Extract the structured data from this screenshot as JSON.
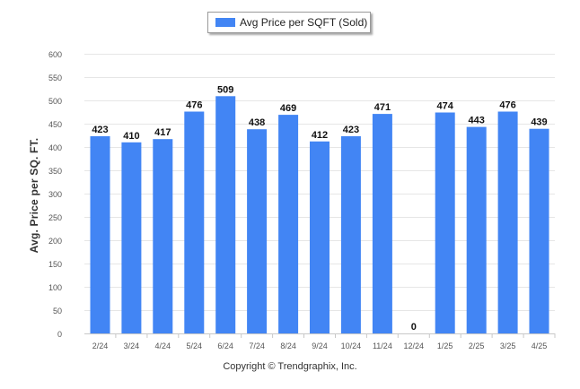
{
  "legend": {
    "label": "Avg Price per SQFT (Sold)",
    "color": "#4285f4"
  },
  "footer": {
    "copyright": "Copyright © Trendgraphix, Inc."
  },
  "chart_data": {
    "type": "bar",
    "title": "",
    "ylabel": "Avg. Price per SQ. FT.",
    "xlabel": "",
    "ylim": [
      0,
      600
    ],
    "yticks": [
      0,
      50,
      100,
      150,
      200,
      250,
      300,
      350,
      400,
      450,
      500,
      550,
      600
    ],
    "grid": true,
    "legend_position": "top-center",
    "categories": [
      "2/24",
      "3/24",
      "4/24",
      "5/24",
      "6/24",
      "7/24",
      "8/24",
      "9/24",
      "10/24",
      "11/24",
      "12/24",
      "1/25",
      "2/25",
      "3/25",
      "4/25"
    ],
    "series": [
      {
        "name": "Avg Price per SQFT (Sold)",
        "color": "#4285f4",
        "values": [
          423,
          410,
          417,
          476,
          509,
          438,
          469,
          412,
          423,
          471,
          0,
          474,
          443,
          476,
          439
        ]
      }
    ]
  }
}
